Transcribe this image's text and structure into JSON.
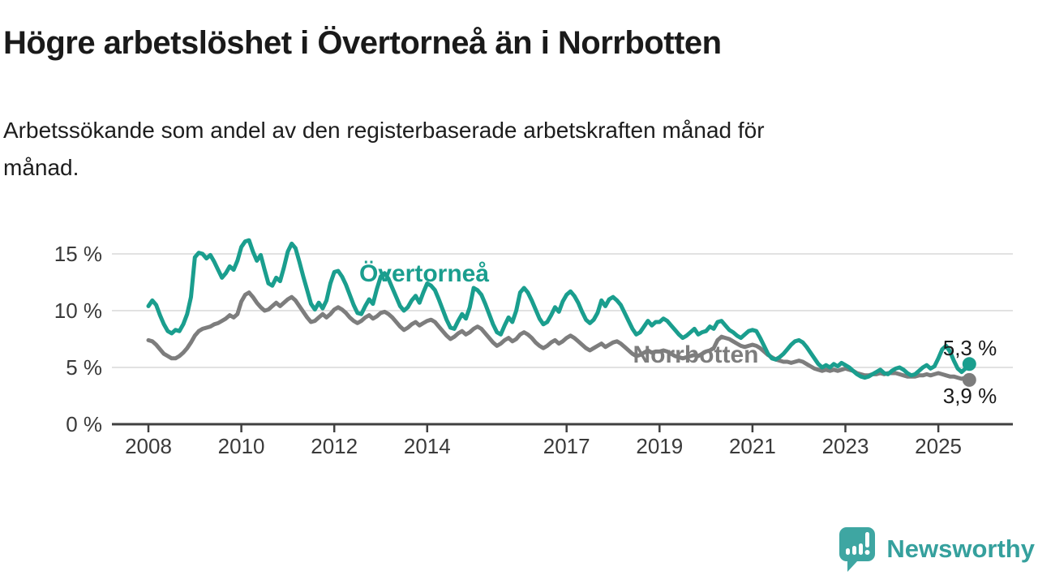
{
  "header": {
    "title": "Högre arbetslöshet i Övertorneå än i Norrbotten",
    "subtitle_line1": "Arbetssökande som andel av den registerbaserade arbetskraften månad för",
    "subtitle_line2": "månad."
  },
  "chart_data": {
    "type": "line",
    "title": "",
    "xlabel": "",
    "ylabel": "",
    "unit": "%",
    "grid": true,
    "ylim": [
      0,
      17
    ],
    "x_start_year": 2008,
    "x_frequency": "monthly",
    "x_end": "2025-09",
    "y_ticks": [
      {
        "value": 0,
        "label": "0 %"
      },
      {
        "value": 5,
        "label": "5 %"
      },
      {
        "value": 10,
        "label": "10 %"
      },
      {
        "value": 15,
        "label": "15 %"
      }
    ],
    "x_ticks": [
      {
        "year": 2008,
        "label": "2008"
      },
      {
        "year": 2010,
        "label": "2010"
      },
      {
        "year": 2012,
        "label": "2012"
      },
      {
        "year": 2014,
        "label": "2014"
      },
      {
        "year": 2017,
        "label": "2017"
      },
      {
        "year": 2019,
        "label": "2019"
      },
      {
        "year": 2021,
        "label": "2021"
      },
      {
        "year": 2023,
        "label": "2023"
      },
      {
        "year": 2025,
        "label": "2025"
      }
    ],
    "series": [
      {
        "name": "Norrbotten",
        "color": "#7d7d7d",
        "end_value": 3.9,
        "end_label": "3,9 %",
        "values": [
          7.4,
          7.3,
          7.0,
          6.6,
          6.2,
          6.0,
          5.8,
          5.8,
          6.0,
          6.3,
          6.7,
          7.2,
          7.8,
          8.2,
          8.4,
          8.5,
          8.6,
          8.8,
          8.9,
          9.1,
          9.3,
          9.6,
          9.4,
          9.7,
          10.8,
          11.4,
          11.6,
          11.2,
          10.7,
          10.3,
          10.0,
          10.1,
          10.4,
          10.7,
          10.4,
          10.7,
          11.0,
          11.2,
          10.9,
          10.4,
          9.9,
          9.4,
          9.0,
          9.1,
          9.4,
          9.7,
          9.4,
          9.7,
          10.1,
          10.3,
          10.1,
          9.8,
          9.4,
          9.1,
          8.9,
          9.1,
          9.4,
          9.6,
          9.3,
          9.5,
          9.8,
          9.9,
          9.7,
          9.4,
          9.0,
          8.6,
          8.3,
          8.5,
          8.8,
          9.0,
          8.7,
          8.9,
          9.1,
          9.2,
          9.0,
          8.6,
          8.2,
          7.8,
          7.5,
          7.7,
          8.0,
          8.2,
          7.9,
          8.1,
          8.4,
          8.6,
          8.4,
          8.0,
          7.6,
          7.2,
          6.9,
          7.1,
          7.4,
          7.6,
          7.3,
          7.5,
          7.9,
          8.1,
          7.9,
          7.6,
          7.2,
          6.9,
          6.7,
          6.9,
          7.2,
          7.4,
          7.1,
          7.3,
          7.6,
          7.8,
          7.6,
          7.3,
          7.0,
          6.7,
          6.5,
          6.7,
          6.9,
          7.1,
          6.8,
          7.0,
          7.2,
          7.3,
          7.1,
          6.8,
          6.5,
          6.2,
          6.0,
          6.1,
          6.3,
          6.5,
          6.3,
          6.4,
          6.4,
          6.5,
          6.4,
          6.2,
          6.0,
          5.9,
          5.8,
          5.9,
          6.0,
          6.1,
          6.0,
          6.2,
          6.4,
          6.5,
          6.7,
          7.4,
          7.7,
          7.6,
          7.5,
          7.3,
          7.1,
          6.9,
          6.8,
          6.9,
          7.0,
          6.9,
          6.7,
          6.4,
          6.1,
          5.9,
          5.7,
          5.6,
          5.5,
          5.5,
          5.4,
          5.5,
          5.6,
          5.5,
          5.3,
          5.1,
          4.9,
          4.8,
          4.7,
          4.8,
          4.7,
          4.8,
          4.7,
          4.8,
          4.9,
          4.8,
          4.7,
          4.5,
          4.4,
          4.3,
          4.3,
          4.4,
          4.4,
          4.5,
          4.4,
          4.5,
          4.5,
          4.5,
          4.4,
          4.3,
          4.2,
          4.2,
          4.2,
          4.3,
          4.3,
          4.4,
          4.3,
          4.4,
          4.5,
          4.4,
          4.3,
          4.2,
          4.2,
          4.1,
          4.0,
          4.1,
          3.9
        ]
      },
      {
        "name": "Övertorneå",
        "color": "#1a9e8e",
        "end_value": 5.3,
        "end_label": "5,3 %",
        "values": [
          10.4,
          10.9,
          10.5,
          9.6,
          8.8,
          8.2,
          8.0,
          8.3,
          8.2,
          8.8,
          9.7,
          11.2,
          14.7,
          15.1,
          15.0,
          14.6,
          14.9,
          14.3,
          13.6,
          12.9,
          13.3,
          13.9,
          13.6,
          14.4,
          15.6,
          16.1,
          16.2,
          15.2,
          14.4,
          14.9,
          13.6,
          12.4,
          12.2,
          12.9,
          12.6,
          13.8,
          15.2,
          15.9,
          15.5,
          14.3,
          13.0,
          11.8,
          10.6,
          10.1,
          10.7,
          10.2,
          10.9,
          12.4,
          13.4,
          13.5,
          13.0,
          12.3,
          11.4,
          10.5,
          9.8,
          9.7,
          10.4,
          11.0,
          10.6,
          11.9,
          13.0,
          13.3,
          12.8,
          12.0,
          11.2,
          10.4,
          10.0,
          10.3,
          10.9,
          11.3,
          10.7,
          11.6,
          12.4,
          12.2,
          11.8,
          11.0,
          10.1,
          9.2,
          8.5,
          8.4,
          9.1,
          9.7,
          9.3,
          10.3,
          12.0,
          11.8,
          11.4,
          10.6,
          9.7,
          8.8,
          8.1,
          7.9,
          8.7,
          9.4,
          9.0,
          10.0,
          11.6,
          12.0,
          11.6,
          10.9,
          10.1,
          9.3,
          8.8,
          9.0,
          9.6,
          10.3,
          9.9,
          10.8,
          11.4,
          11.7,
          11.3,
          10.7,
          9.9,
          9.2,
          8.9,
          9.2,
          9.8,
          10.9,
          10.4,
          11.0,
          11.2,
          10.9,
          10.5,
          9.8,
          9.1,
          8.4,
          7.9,
          8.1,
          8.6,
          9.1,
          8.7,
          9.0,
          9.0,
          9.3,
          9.1,
          8.7,
          8.3,
          7.9,
          7.6,
          7.8,
          8.1,
          8.4,
          7.9,
          8.1,
          8.2,
          8.6,
          8.4,
          9.0,
          9.1,
          8.7,
          8.3,
          8.1,
          7.8,
          7.6,
          7.9,
          8.2,
          8.3,
          8.2,
          7.6,
          6.9,
          6.2,
          5.8,
          5.7,
          5.9,
          6.2,
          6.6,
          7.0,
          7.3,
          7.4,
          7.2,
          6.8,
          6.3,
          5.8,
          5.3,
          5.0,
          5.2,
          5.0,
          5.3,
          5.1,
          5.4,
          5.2,
          5.0,
          4.7,
          4.4,
          4.2,
          4.1,
          4.2,
          4.4,
          4.6,
          4.8,
          4.5,
          4.4,
          4.7,
          4.9,
          5.0,
          4.8,
          4.5,
          4.3,
          4.4,
          4.7,
          5.0,
          5.2,
          4.9,
          5.1,
          5.8,
          6.6,
          6.9,
          6.4,
          5.6,
          4.9,
          4.6,
          4.9,
          5.3
        ]
      }
    ],
    "annotations": {
      "line_labels": [
        "Norrbotten",
        "Övertorneå"
      ]
    },
    "colors": {
      "overtornea": "#1a9e8e",
      "norrbotten": "#7d7d7d",
      "gridline": "#d9d9d9",
      "axis": "#404040",
      "tick_label": "#3a3a3a",
      "end_label": "#1a1a1a"
    }
  },
  "footer": {
    "brand": "Newsworthy"
  }
}
